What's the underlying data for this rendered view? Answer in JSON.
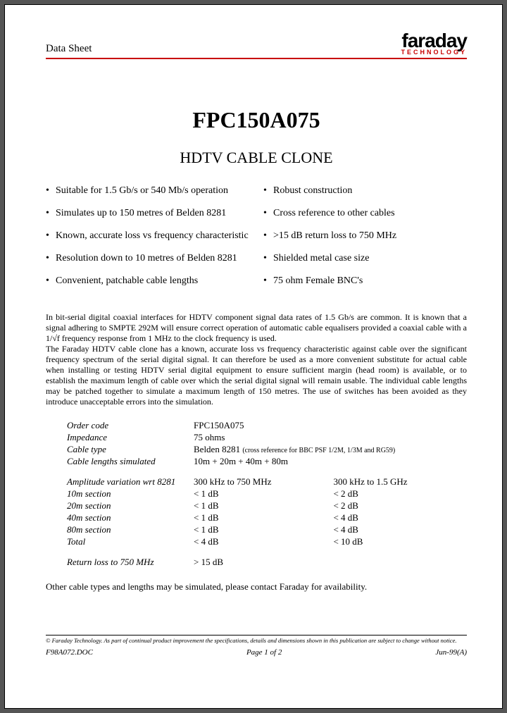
{
  "colors": {
    "accent": "#c80000",
    "text": "#000000",
    "page_bg": "#ffffff",
    "outer_bg": "#555555"
  },
  "header": {
    "label": "Data Sheet",
    "logo_main": "faraday",
    "logo_sub": "TECHNOLOGY"
  },
  "title": "FPC150A075",
  "subtitle": "HDTV CABLE CLONE",
  "features_left": [
    "Suitable for 1.5 Gb/s or 540 Mb/s operation",
    "Simulates up to 150 metres of Belden 8281",
    "Known, accurate loss vs frequency characteristic",
    "Resolution down to 10 metres of Belden 8281",
    "Convenient, patchable cable lengths"
  ],
  "features_right": [
    "Robust construction",
    "Cross reference to other cables",
    ">15 dB return loss to 750 MHz",
    "Shielded metal case size",
    "75 ohm Female BNC's"
  ],
  "body_p1": "In bit-serial digital coaxial interfaces for HDTV component signal data rates of 1.5 Gb/s are common. It is known that a signal adhering to SMPTE 292M will ensure correct operation of automatic cable equalisers provided a coaxial cable with a 1/√f frequency response from 1 MHz to the clock frequency is used.",
  "body_p2": "The Faraday HDTV cable clone has a known, accurate loss vs frequency characteristic against cable over the significant frequency spectrum of the serial digital signal. It can therefore be used as a more convenient substitute for actual cable when installing or testing HDTV serial digital equipment to ensure sufficient margin (head room) is available, or to establish the maximum length of cable over which the serial digital signal will remain usable. The individual cable lengths may be patched together to simulate a maximum length of 150 metres. The use of switches has been avoided as they introduce unacceptable errors into the simulation.",
  "specs": {
    "order_code": {
      "label": "Order code",
      "value": "FPC150A075"
    },
    "impedance": {
      "label": "Impedance",
      "value": "75 ohms"
    },
    "cable_type": {
      "label": "Cable type",
      "value": "Belden 8281",
      "note": "(cross reference for BBC PSF 1/2M, 1/3M and RG59)"
    },
    "lengths": {
      "label": "Cable lengths simulated",
      "value": "10m + 20m + 40m + 80m"
    },
    "amp_var": {
      "label": "Amplitude variation wrt 8281",
      "col1": "300 kHz to 750 MHz",
      "col2": "300 kHz to 1.5 GHz"
    },
    "s10": {
      "label": "10m section",
      "col1": "< 1 dB",
      "col2": "< 2 dB"
    },
    "s20": {
      "label": "20m section",
      "col1": "< 1 dB",
      "col2": "< 2 dB"
    },
    "s40": {
      "label": "40m section",
      "col1": "< 1 dB",
      "col2": "< 4 dB"
    },
    "s80": {
      "label": "80m section",
      "col1": "< 1 dB",
      "col2": "< 4 dB"
    },
    "total": {
      "label": "Total",
      "col1": "< 4 dB",
      "col2": "< 10 dB"
    },
    "return_loss": {
      "label": "Return loss to 750 MHz",
      "value": "> 15 dB"
    }
  },
  "closing": "Other cable types and lengths may be simulated, please contact Faraday for availability.",
  "footnote": "© Faraday Technology. As part of continual product improvement the specifications, details and dimensions shown in this publication are subject to change without notice.",
  "footer": {
    "left": "F98A072.DOC",
    "center": "Page 1 of 2",
    "right": "Jun-99(A)"
  }
}
